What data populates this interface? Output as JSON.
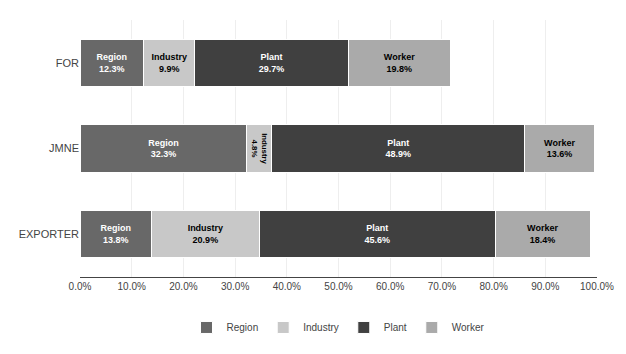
{
  "chart_data": {
    "type": "bar",
    "orientation": "horizontal",
    "stacked": true,
    "categories": [
      "FOR",
      "JMNE",
      "EXPORTER"
    ],
    "series": [
      {
        "name": "Region",
        "color": "#686868",
        "values": [
          12.3,
          32.3,
          13.8
        ],
        "value_labels": [
          "12.3%",
          "32.3%",
          "13.8%"
        ]
      },
      {
        "name": "Industry",
        "color": "#c8c8c8",
        "values": [
          9.9,
          4.8,
          20.9
        ],
        "value_labels": [
          "9.9%",
          "4.8%",
          "20.9%"
        ]
      },
      {
        "name": "Plant",
        "color": "#404040",
        "values": [
          29.7,
          48.9,
          45.6
        ],
        "value_labels": [
          "29.7%",
          "48.9%",
          "45.6%"
        ]
      },
      {
        "name": "Worker",
        "color": "#aaaaaa",
        "values": [
          19.8,
          13.6,
          18.4
        ],
        "value_labels": [
          "19.8%",
          "13.6%",
          "18.4%"
        ]
      }
    ],
    "xlim": [
      0,
      100
    ],
    "xticks": [
      {
        "value": 0,
        "label": "0.0%"
      },
      {
        "value": 10,
        "label": "10.0%"
      },
      {
        "value": 20,
        "label": "20.0%"
      },
      {
        "value": 30,
        "label": "30.0%"
      },
      {
        "value": 40,
        "label": "40.0%"
      },
      {
        "value": 50,
        "label": "50.0%"
      },
      {
        "value": 60,
        "label": "60.0%"
      },
      {
        "value": 70,
        "label": "70.0%"
      },
      {
        "value": 80,
        "label": "80.0%"
      },
      {
        "value": 90,
        "label": "90.0%"
      },
      {
        "value": 100,
        "label": "100.0%"
      }
    ],
    "grid": true,
    "legend": "bottom",
    "data_labels": true
  }
}
